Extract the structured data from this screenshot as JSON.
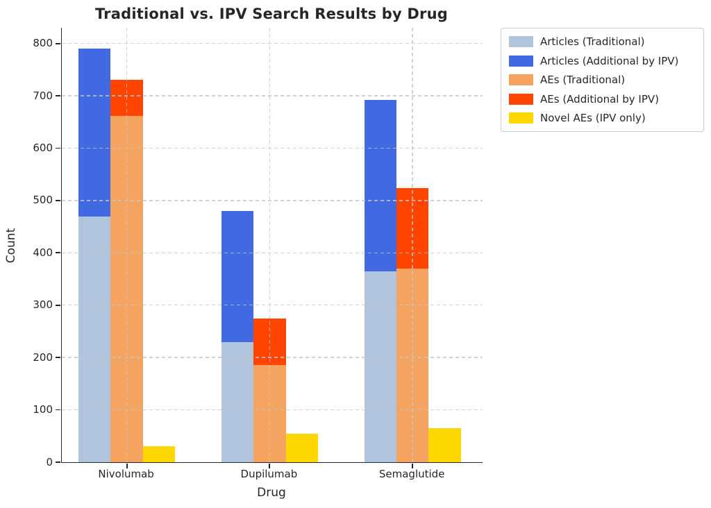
{
  "chart_data": {
    "type": "bar",
    "title": "Traditional vs. IPV Search Results by Drug",
    "xlabel": "Drug",
    "ylabel": "Count",
    "categories": [
      "Nivolumab",
      "Dupilumab",
      "Semaglutide"
    ],
    "series": [
      {
        "name": "Articles (Traditional)",
        "color": "#B0C4DE",
        "values": [
          470,
          230,
          365
        ]
      },
      {
        "name": "Articles (Additional by IPV)",
        "color": "#4169E1",
        "values": [
          320,
          250,
          327
        ]
      },
      {
        "name": "AEs (Traditional)",
        "color": "#F4A460",
        "values": [
          662,
          185,
          370
        ]
      },
      {
        "name": "AEs (Additional by IPV)",
        "color": "#FF4500",
        "values": [
          68,
          90,
          154
        ]
      },
      {
        "name": "Novel AEs (IPV only)",
        "color": "#FFD700",
        "values": [
          30,
          54,
          65
        ]
      }
    ],
    "stacks": [
      {
        "id": "articles",
        "offset_units": -0.225,
        "segment_series": [
          0,
          1
        ]
      },
      {
        "id": "aes",
        "offset_units": 0.0,
        "segment_series": [
          2,
          3
        ]
      },
      {
        "id": "novel",
        "offset_units": 0.225,
        "segment_series": [
          4
        ]
      }
    ],
    "stack_totals": {
      "articles": [
        790,
        480,
        692
      ],
      "aes": [
        730,
        275,
        524
      ],
      "novel": [
        30,
        54,
        65
      ]
    },
    "bar_width_units": 0.225,
    "xlim": [
      -0.455,
      2.49
    ],
    "ylim": [
      0,
      830
    ],
    "yticks": [
      0,
      100,
      200,
      300,
      400,
      500,
      600,
      700,
      800
    ],
    "grid": {
      "horizontal": true,
      "vertical": true,
      "style": "dashed",
      "color": "#c6c6c6"
    },
    "legend": {
      "position": "outside-upper-right",
      "border_color": "#cccccc"
    },
    "colors": {
      "articles_traditional": "#B0C4DE",
      "articles_additional": "#4169E1",
      "aes_traditional": "#F4A460",
      "aes_additional": "#FF4500",
      "novel_aes": "#FFD700",
      "text": "#262626",
      "grid": "#c6c6c6"
    }
  }
}
